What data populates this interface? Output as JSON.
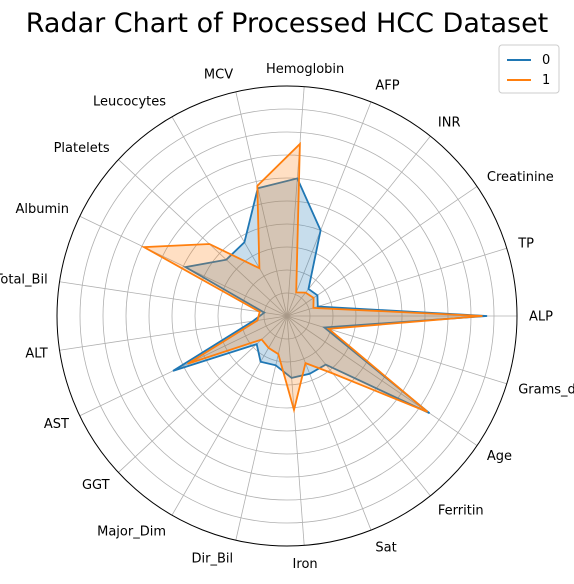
{
  "chart_data": {
    "type": "radar",
    "title": "Radar Chart of Processed HCC Dataset",
    "categories": [
      "ALP",
      "TP",
      "Creatinine",
      "INR",
      "AFP",
      "Hemoglobin",
      "MCV",
      "Leucocytes",
      "Platelets",
      "Albumin",
      "Total_Bil",
      "ALT",
      "AST",
      "GGT",
      "Major_Dim",
      "Dir_Bil",
      "Iron",
      "Sat",
      "Ferritin",
      "Age",
      "Grams_day"
    ],
    "series": [
      {
        "name": "0",
        "color": "#1f77b4",
        "values": [
          0.87,
          0.14,
          0.16,
          0.15,
          0.4,
          0.6,
          0.57,
          0.37,
          0.36,
          0.49,
          0.1,
          0.15,
          0.55,
          0.18,
          0.23,
          0.22,
          0.27,
          0.27,
          0.27,
          0.75,
          0.17
        ]
      },
      {
        "name": "1",
        "color": "#ff7f0e",
        "values": [
          0.85,
          0.12,
          0.14,
          0.13,
          0.11,
          0.75,
          0.58,
          0.24,
          0.46,
          0.69,
          0.12,
          0.13,
          0.48,
          0.15,
          0.16,
          0.17,
          0.41,
          0.22,
          0.32,
          0.74,
          0.19
        ]
      }
    ],
    "rlim": [
      0,
      1
    ],
    "grid": true,
    "legend_position": "top-right"
  }
}
